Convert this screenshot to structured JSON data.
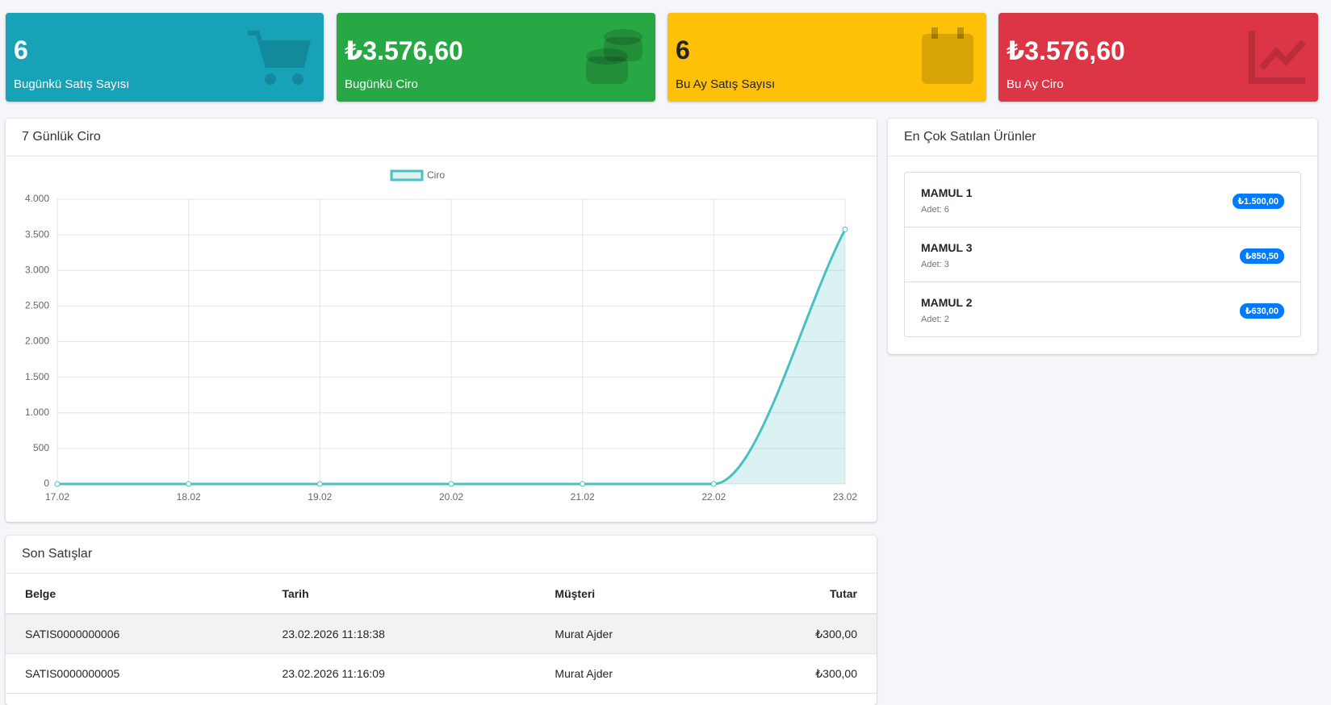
{
  "stats": [
    {
      "value": "6",
      "label": "Bugünkü Satış Sayısı"
    },
    {
      "value": "₺3.576,60",
      "label": "Bugünkü Ciro"
    },
    {
      "value": "6",
      "label": "Bu Ay Satış Sayısı"
    },
    {
      "value": "₺3.576,60",
      "label": "Bu Ay Ciro"
    }
  ],
  "chart_panel": {
    "title": "7 Günlük Ciro"
  },
  "chart_data": {
    "type": "line",
    "categories": [
      "17.02",
      "18.02",
      "19.02",
      "20.02",
      "21.02",
      "22.02",
      "23.02"
    ],
    "series": [
      {
        "name": "Ciro",
        "color": "#4bc0c0",
        "values": [
          0,
          0,
          0,
          0,
          0,
          0,
          3576.6
        ]
      }
    ],
    "ylim": [
      0,
      4000
    ],
    "yticks": [
      0,
      500,
      {
        "value": 1000,
        "label": "1.000"
      },
      {
        "value": 1500,
        "label": "1.500"
      },
      {
        "value": 2000,
        "label": "2.000"
      },
      {
        "value": 2500,
        "label": "2.500"
      },
      {
        "value": 3000,
        "label": "3.000"
      },
      {
        "value": 3500,
        "label": "3.500"
      },
      {
        "value": 4000,
        "label": "4.000"
      }
    ],
    "grid": true,
    "legend": "top"
  },
  "top_products": {
    "title": "En Çok Satılan Ürünler",
    "items": [
      {
        "name": "MAMUL 1",
        "qty": "Adet: 6",
        "amount": "₺1.500,00"
      },
      {
        "name": "MAMUL 3",
        "qty": "Adet: 3",
        "amount": "₺850,50"
      },
      {
        "name": "MAMUL 2",
        "qty": "Adet: 2",
        "amount": "₺630,00"
      }
    ]
  },
  "recent_sales": {
    "title": "Son Satışlar",
    "columns": [
      "Belge",
      "Tarih",
      "Müşteri",
      "Tutar"
    ],
    "rows": [
      [
        "SATIS0000000006",
        "23.02.2026 11:18:38",
        "Murat Ajder",
        "₺300,00"
      ],
      [
        "SATIS0000000005",
        "23.02.2026 11:16:09",
        "Murat Ajder",
        "₺300,00"
      ]
    ]
  }
}
